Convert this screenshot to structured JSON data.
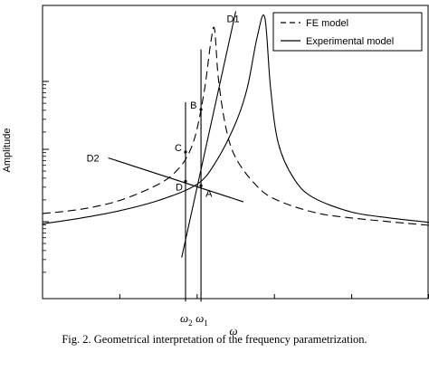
{
  "caption": "Fig. 2. Geometrical interpretation of the frequency parametrization.",
  "chart_data": {
    "type": "line",
    "title": "",
    "xlabel": "ω",
    "ylabel": "Amplitude",
    "yscale": "log",
    "xlim": [
      0,
      10
    ],
    "ylim": [
      0,
      10
    ],
    "x_tick_labels": [
      {
        "x": 3.7,
        "text": "ω",
        "sub": "2"
      },
      {
        "x": 4.1,
        "text": "ω",
        "sub": "1"
      }
    ],
    "grid": false,
    "legend": {
      "position": "top-right",
      "entries": [
        {
          "label": "FE model",
          "style": "dashed"
        },
        {
          "label": "Experimental model",
          "style": "solid"
        }
      ]
    },
    "series": [
      {
        "name": "FE model",
        "style": "dashed",
        "points": [
          [
            0,
            2.9
          ],
          [
            1,
            3.05
          ],
          [
            2,
            3.35
          ],
          [
            3,
            3.9
          ],
          [
            3.5,
            4.4
          ],
          [
            3.8,
            5.0
          ],
          [
            4.0,
            5.8
          ],
          [
            4.2,
            7.2
          ],
          [
            4.35,
            8.7
          ],
          [
            4.45,
            9.2
          ],
          [
            4.55,
            7.5
          ],
          [
            4.75,
            5.8
          ],
          [
            5,
            4.8
          ],
          [
            5.5,
            3.9
          ],
          [
            6,
            3.4
          ],
          [
            7,
            2.95
          ],
          [
            8,
            2.75
          ],
          [
            10,
            2.5
          ]
        ]
      },
      {
        "name": "Experimental model",
        "style": "solid",
        "points": [
          [
            0,
            2.55
          ],
          [
            1,
            2.75
          ],
          [
            2,
            3.0
          ],
          [
            3,
            3.35
          ],
          [
            4,
            3.9
          ],
          [
            4.5,
            4.7
          ],
          [
            5,
            6.0
          ],
          [
            5.3,
            7.2
          ],
          [
            5.55,
            8.9
          ],
          [
            5.75,
            9.6
          ],
          [
            5.9,
            7.2
          ],
          [
            6.1,
            5.3
          ],
          [
            6.5,
            4.1
          ],
          [
            7,
            3.45
          ],
          [
            8,
            2.95
          ],
          [
            9,
            2.75
          ],
          [
            10,
            2.6
          ]
        ]
      }
    ],
    "construction_lines": [
      {
        "label": "D1",
        "from": [
          3.6,
          1.4
        ],
        "to": [
          5.0,
          9.8
        ]
      },
      {
        "label": "D2",
        "from": [
          1.7,
          4.8
        ],
        "to": [
          5.2,
          3.3
        ]
      },
      {
        "label": "",
        "from": [
          3.7,
          -0.1
        ],
        "to": [
          3.7,
          6.7
        ]
      },
      {
        "label": "",
        "from": [
          4.1,
          -0.1
        ],
        "to": [
          4.1,
          8.5
        ]
      }
    ],
    "annotations": [
      {
        "text": "A",
        "x": 4.1,
        "y": 3.85
      },
      {
        "text": "B",
        "x": 4.1,
        "y": 6.45
      },
      {
        "text": "C",
        "x": 3.7,
        "y": 5.0
      },
      {
        "text": "D",
        "x": 3.7,
        "y": 4.0
      }
    ]
  }
}
